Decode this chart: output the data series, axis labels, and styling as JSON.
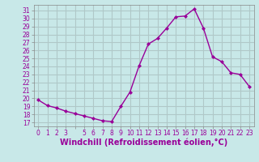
{
  "x": [
    0,
    1,
    2,
    3,
    4,
    5,
    6,
    7,
    8,
    9,
    10,
    11,
    12,
    13,
    14,
    15,
    16,
    17,
    18,
    19,
    20,
    21,
    22,
    23
  ],
  "y": [
    19.8,
    19.1,
    18.8,
    18.4,
    18.1,
    17.8,
    17.5,
    17.2,
    17.1,
    19.0,
    20.8,
    24.1,
    26.8,
    27.5,
    28.8,
    30.2,
    30.3,
    31.2,
    28.8,
    25.2,
    24.6,
    23.2,
    23.0,
    21.5
  ],
  "line_color": "#990099",
  "marker": "D",
  "marker_size": 2.0,
  "line_width": 1.0,
  "bg_color": "#c8e8e8",
  "grid_color": "#b0c8c8",
  "xlabel": "Windchill (Refroidissement éolien,°C)",
  "xlabel_fontsize": 7.0,
  "xlabel_color": "#990099",
  "ylabel_ticks": [
    17,
    18,
    19,
    20,
    21,
    22,
    23,
    24,
    25,
    26,
    27,
    28,
    29,
    30,
    31
  ],
  "xlim": [
    -0.5,
    23.5
  ],
  "ylim": [
    16.5,
    31.7
  ],
  "xtick_labels": [
    "0",
    "1",
    "2",
    "3",
    "",
    "5",
    "6",
    "7",
    "8",
    "9",
    "10",
    "11",
    "12",
    "13",
    "14",
    "15",
    "16",
    "17",
    "18",
    "19",
    "20",
    "21",
    "22",
    "23"
  ],
  "tick_fontsize": 5.5,
  "tick_color": "#990099",
  "font_name": "DejaVu Sans",
  "spine_color": "#888888"
}
